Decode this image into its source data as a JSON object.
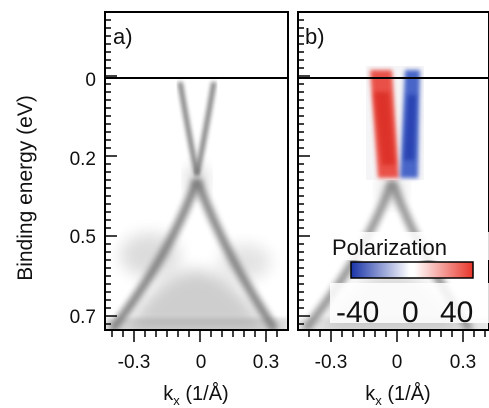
{
  "figure": {
    "y_axis_label": "Binding energy (eV)",
    "y_ticks": [
      "0",
      "0.2",
      "0.5",
      "0.7"
    ],
    "y_tick_values_eV": [
      0,
      0.2,
      0.5,
      0.7
    ],
    "fermi_level_eV": 0,
    "panels": [
      {
        "label": "a)",
        "x_axis_label_main": "k",
        "x_axis_label_sub": "x",
        "x_axis_label_unit": " (1/Å)",
        "x_ticks": [
          "-0.3",
          "0",
          "0.3"
        ],
        "x_tick_values": [
          -0.3,
          0,
          0.3
        ]
      },
      {
        "label": "b)",
        "x_axis_label_main": "k",
        "x_axis_label_sub": "x",
        "x_axis_label_unit": " (1/Å)",
        "x_ticks": [
          "-0.3",
          "0",
          "0.3"
        ],
        "x_tick_values": [
          -0.3,
          0,
          0.3
        ]
      }
    ],
    "colorbar": {
      "title": "Polarization",
      "ticks": [
        "-40",
        "0",
        "40"
      ],
      "tick_values": [
        -40,
        0,
        40
      ],
      "colors": {
        "negative": "#1f3fb0",
        "zero": "#ffffff",
        "positive": "#e8352a"
      }
    },
    "colors": {
      "spectrum": "#000000",
      "axis": "#000000",
      "background": "#ffffff"
    }
  }
}
